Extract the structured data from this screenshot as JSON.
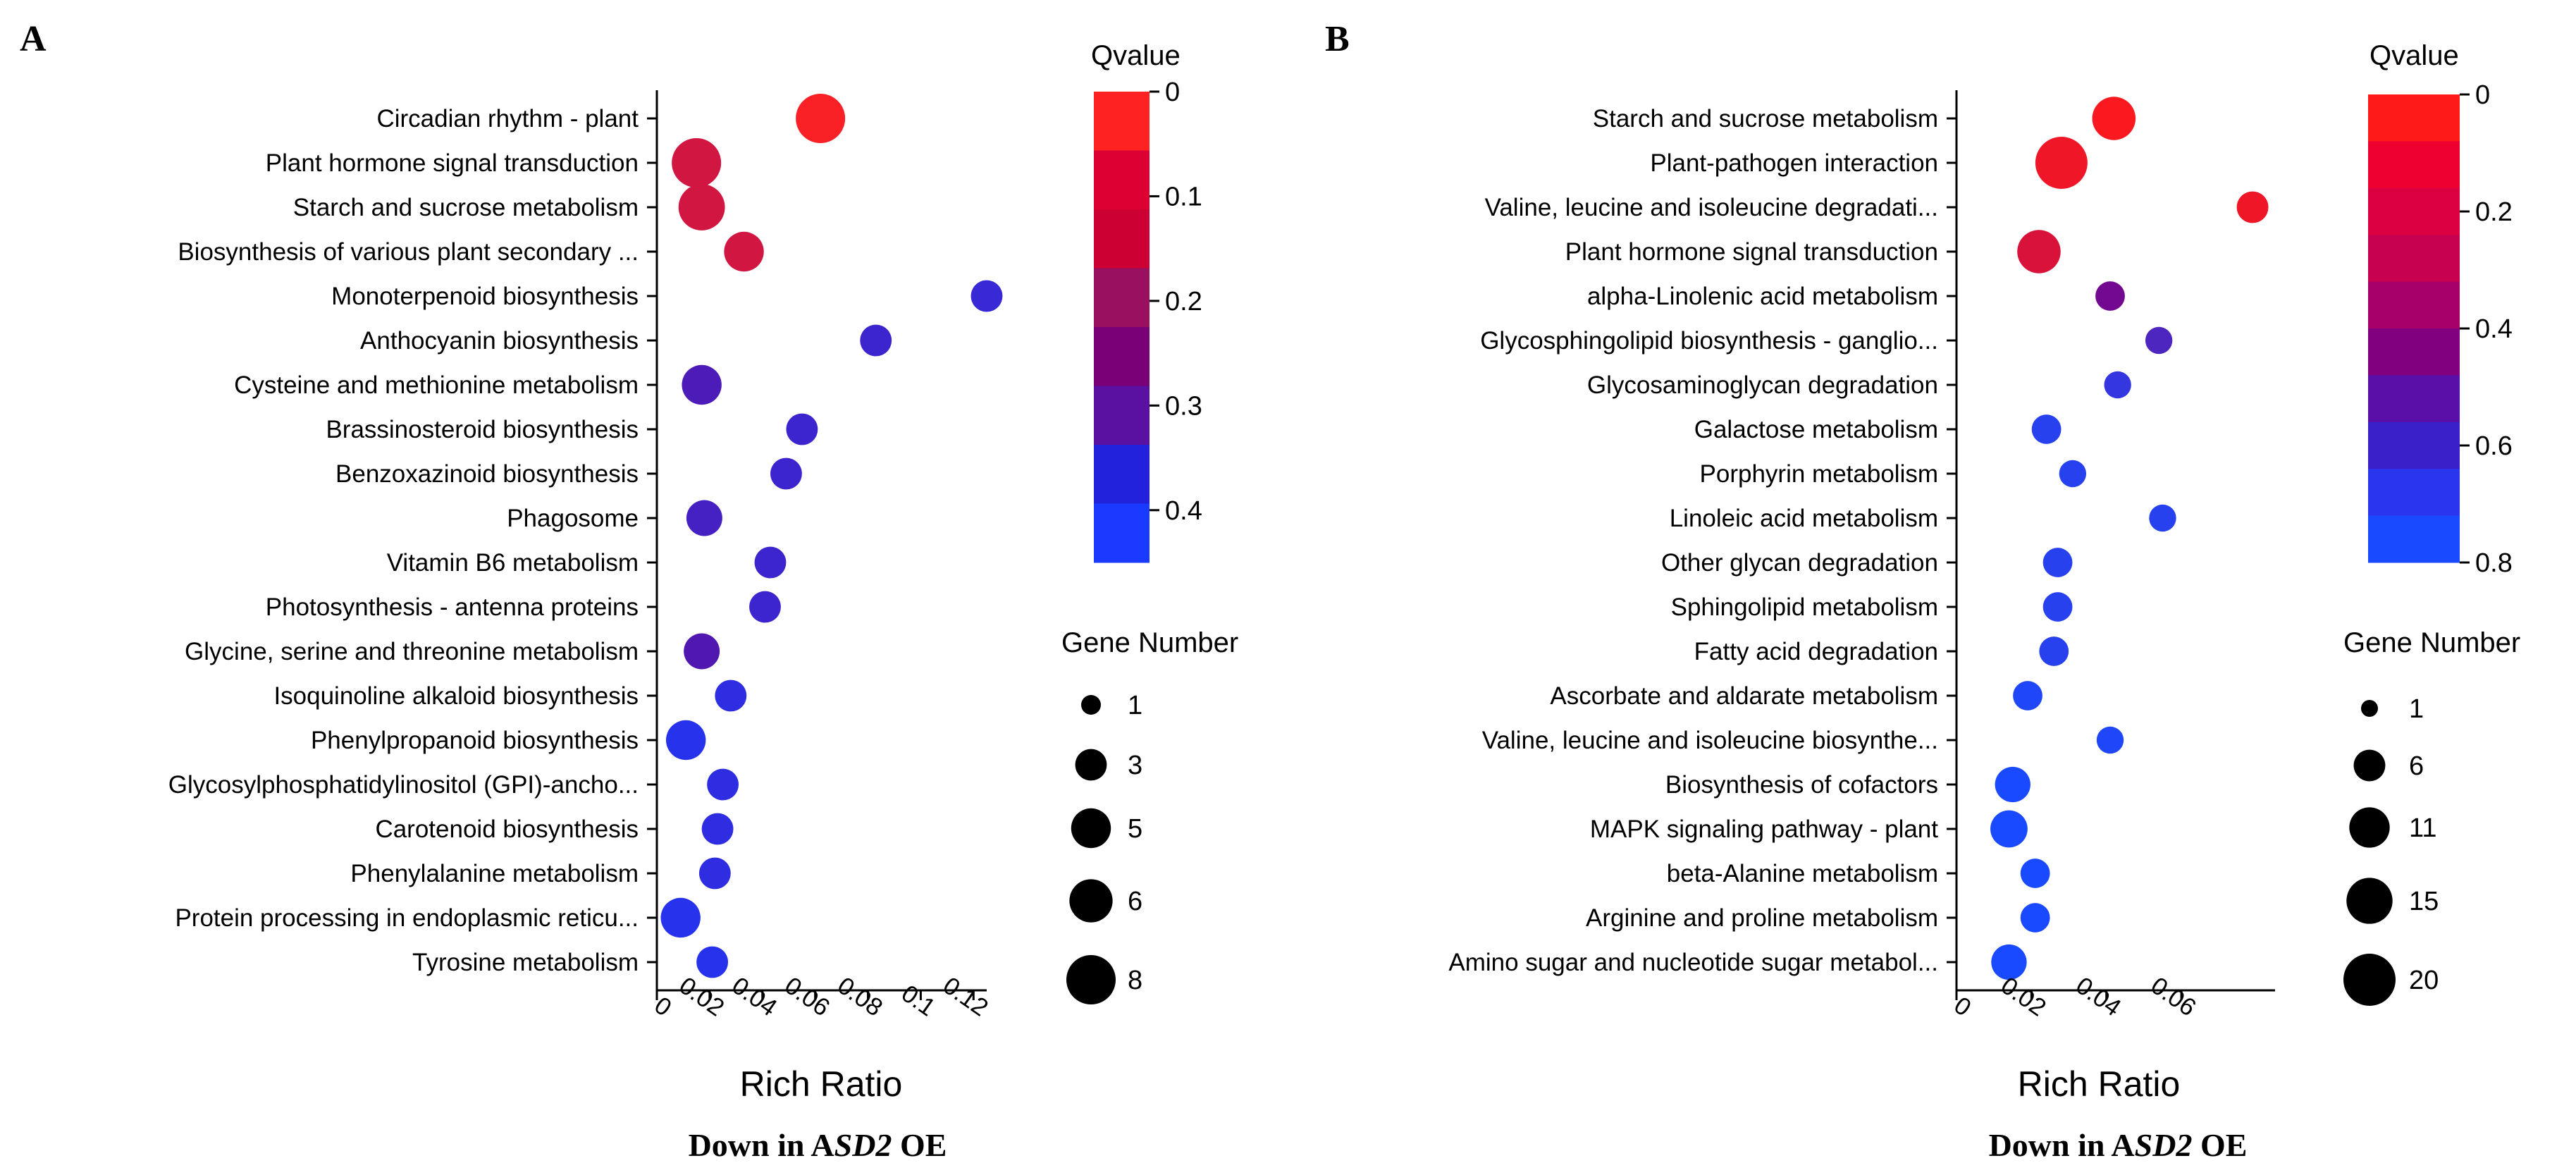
{
  "chart_data": [
    {
      "type": "scatter",
      "panel": "A",
      "xlabel": "Rich Ratio",
      "xlim": [
        0,
        0.125
      ],
      "xticks": [
        "0",
        "0.02",
        "0.04",
        "0.06",
        "0.08",
        "0.1",
        "0.12"
      ],
      "xtick_values": [
        0,
        0.02,
        0.04,
        0.06,
        0.08,
        0.1,
        0.12
      ],
      "caption": {
        "prefix": "Down in A",
        "gene": "SD2",
        "suffix": " OE"
      },
      "qvalue_legend": {
        "title": "Qvalue",
        "range": [
          0,
          0.45
        ],
        "ticks": [
          "0",
          "0.1",
          "0.2",
          "0.3",
          "0.4"
        ],
        "tick_values": [
          0,
          0.1,
          0.2,
          0.3,
          0.4
        ],
        "bands": [
          "#ff2222",
          "#dd0033",
          "#cc0033",
          "#9a1060",
          "#7a0078",
          "#5a10a0",
          "#2222dd",
          "#1a3aff"
        ]
      },
      "size_legend": {
        "title": "Gene Number",
        "values": [
          1,
          3,
          5,
          6,
          8
        ],
        "labels": [
          "1",
          "3",
          "5",
          "6",
          "8"
        ]
      },
      "points": [
        {
          "term": "Circadian rhythm - plant",
          "x": 0.062,
          "genes": 8,
          "q": 0.01
        },
        {
          "term": "Plant hormone signal transduction",
          "x": 0.015,
          "genes": 8,
          "q": 0.08
        },
        {
          "term": "Starch and sucrose metabolism",
          "x": 0.017,
          "genes": 7,
          "q": 0.08
        },
        {
          "term": "Biosynthesis of various plant secondary ...",
          "x": 0.033,
          "genes": 5,
          "q": 0.08
        },
        {
          "term": "Monoterpenoid biosynthesis",
          "x": 0.125,
          "genes": 3,
          "q": 0.38
        },
        {
          "term": "Anthocyanin biosynthesis",
          "x": 0.083,
          "genes": 3,
          "q": 0.37
        },
        {
          "term": "Cysteine and methionine metabolism",
          "x": 0.017,
          "genes": 5,
          "q": 0.33
        },
        {
          "term": "Brassinosteroid biosynthesis",
          "x": 0.055,
          "genes": 3,
          "q": 0.37
        },
        {
          "term": "Benzoxazinoid biosynthesis",
          "x": 0.049,
          "genes": 3,
          "q": 0.37
        },
        {
          "term": "Phagosome",
          "x": 0.018,
          "genes": 4,
          "q": 0.35
        },
        {
          "term": "Vitamin B6 metabolism",
          "x": 0.043,
          "genes": 3,
          "q": 0.37
        },
        {
          "term": "Photosynthesis - antenna proteins",
          "x": 0.041,
          "genes": 3,
          "q": 0.37
        },
        {
          "term": "Glycine, serine and threonine metabolism",
          "x": 0.017,
          "genes": 4,
          "q": 0.32
        },
        {
          "term": "Isoquinoline alkaloid biosynthesis",
          "x": 0.028,
          "genes": 3,
          "q": 0.4
        },
        {
          "term": "Phenylpropanoid biosynthesis",
          "x": 0.011,
          "genes": 5,
          "q": 0.42
        },
        {
          "term": "Glycosylphosphatidylinositol (GPI)-ancho...",
          "x": 0.025,
          "genes": 3,
          "q": 0.4
        },
        {
          "term": "Carotenoid biosynthesis",
          "x": 0.023,
          "genes": 3,
          "q": 0.4
        },
        {
          "term": "Phenylalanine metabolism",
          "x": 0.022,
          "genes": 3,
          "q": 0.4
        },
        {
          "term": "Protein processing in endoplasmic reticu...",
          "x": 0.009,
          "genes": 5,
          "q": 0.42
        },
        {
          "term": "Tyrosine metabolism",
          "x": 0.021,
          "genes": 3,
          "q": 0.42
        }
      ]
    },
    {
      "type": "scatter",
      "panel": "B",
      "xlabel": "Rich Ratio",
      "xlim": [
        0,
        0.085
      ],
      "xticks": [
        "0",
        "0.02",
        "0.04",
        "0.06"
      ],
      "xtick_values": [
        0,
        0.02,
        0.04,
        0.06
      ],
      "caption": {
        "prefix": "Down in A",
        "gene": "SD2",
        "suffix": " OE"
      },
      "qvalue_legend": {
        "title": "Qvalue",
        "range": [
          0,
          0.8
        ],
        "ticks": [
          "0",
          "0.2",
          "0.4",
          "0.6",
          "0.8"
        ],
        "tick_values": [
          0,
          0.2,
          0.4,
          0.6,
          0.8
        ],
        "bands": [
          "#ff1a1a",
          "#ee0030",
          "#dd0040",
          "#c80050",
          "#a8006a",
          "#800080",
          "#5a10a8",
          "#3a20c8",
          "#2a36ee",
          "#1a4aff"
        ]
      },
      "size_legend": {
        "title": "Gene Number",
        "values": [
          1,
          6,
          11,
          15,
          20
        ],
        "labels": [
          "1",
          "6",
          "11",
          "15",
          "20"
        ]
      },
      "points": [
        {
          "term": "Starch and sucrose metabolism",
          "x": 0.042,
          "genes": 13,
          "q": 0.02
        },
        {
          "term": "Plant-pathogen interaction",
          "x": 0.028,
          "genes": 20,
          "q": 0.05
        },
        {
          "term": "Valine, leucine and isoleucine degradati...",
          "x": 0.079,
          "genes": 6,
          "q": 0.05
        },
        {
          "term": "Plant hormone signal transduction",
          "x": 0.022,
          "genes": 13,
          "q": 0.12
        },
        {
          "term": "alpha-Linolenic acid metabolism",
          "x": 0.041,
          "genes": 5,
          "q": 0.45
        },
        {
          "term": "Glycosphingolipid biosynthesis - ganglio...",
          "x": 0.054,
          "genes": 4,
          "q": 0.6
        },
        {
          "term": "Glycosaminoglycan degradation",
          "x": 0.043,
          "genes": 4,
          "q": 0.7
        },
        {
          "term": "Galactose metabolism",
          "x": 0.024,
          "genes": 5,
          "q": 0.75
        },
        {
          "term": "Porphyrin metabolism",
          "x": 0.031,
          "genes": 4,
          "q": 0.75
        },
        {
          "term": "Linoleic acid metabolism",
          "x": 0.055,
          "genes": 4,
          "q": 0.75
        },
        {
          "term": "Other glycan degradation",
          "x": 0.027,
          "genes": 5,
          "q": 0.75
        },
        {
          "term": "Sphingolipid metabolism",
          "x": 0.027,
          "genes": 5,
          "q": 0.75
        },
        {
          "term": "Fatty acid degradation",
          "x": 0.026,
          "genes": 5,
          "q": 0.75
        },
        {
          "term": "Ascorbate and aldarate metabolism",
          "x": 0.019,
          "genes": 5,
          "q": 0.78
        },
        {
          "term": "Valine, leucine and isoleucine biosynthe...",
          "x": 0.041,
          "genes": 4,
          "q": 0.78
        },
        {
          "term": "Biosynthesis of cofactors",
          "x": 0.015,
          "genes": 8,
          "q": 0.8
        },
        {
          "term": "MAPK signaling pathway - plant",
          "x": 0.014,
          "genes": 9,
          "q": 0.8
        },
        {
          "term": "beta-Alanine metabolism",
          "x": 0.021,
          "genes": 5,
          "q": 0.8
        },
        {
          "term": "Arginine and proline metabolism",
          "x": 0.021,
          "genes": 5,
          "q": 0.8
        },
        {
          "term": "Amino sugar and nucleotide sugar metabol...",
          "x": 0.014,
          "genes": 8,
          "q": 0.8
        }
      ]
    }
  ]
}
